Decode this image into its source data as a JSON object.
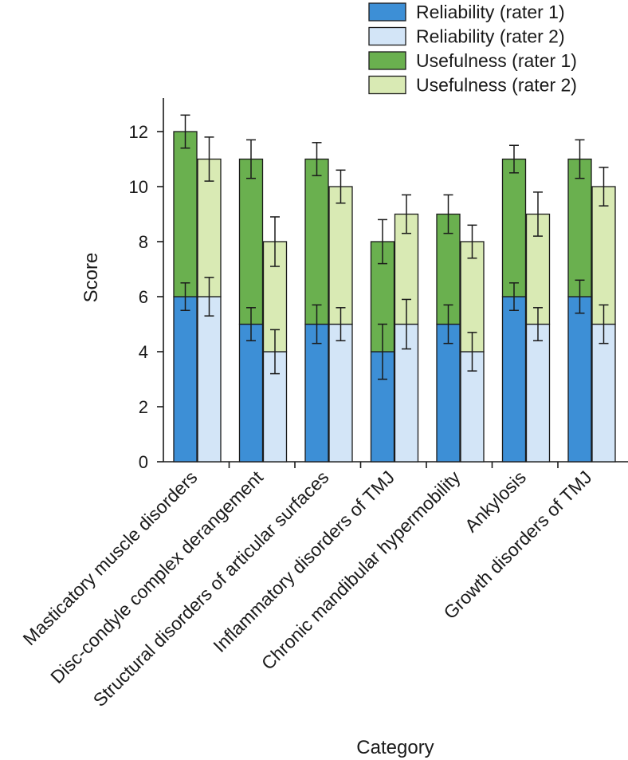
{
  "chart_data": {
    "type": "bar",
    "stacked": true,
    "grouped": true,
    "xlabel": "Category",
    "ylabel": "Score",
    "ylim": [
      0,
      13
    ],
    "yticks": [
      0,
      2,
      4,
      6,
      8,
      10,
      12
    ],
    "grid": false,
    "legend_position": "top-right",
    "categories": [
      "Masticatory muscle disorders",
      "Disc-condyle complex derangement",
      "Structural disorders of articular surfaces",
      "Inflammatory disorders of TMJ",
      "Chronic mandibular hypermobility",
      "Ankylosis",
      "Growth disorders of TMJ"
    ],
    "series": [
      {
        "name": "Reliability (rater 1)",
        "color": "#3d8fd6",
        "stack": "rater 1",
        "values": [
          6,
          5,
          5,
          4,
          5,
          6,
          6
        ],
        "errors": [
          0.5,
          0.6,
          0.7,
          1.0,
          0.7,
          0.5,
          0.6
        ]
      },
      {
        "name": "Reliability (rater 2)",
        "color": "#d3e5f7",
        "stack": "rater 2",
        "values": [
          6,
          4,
          5,
          5,
          4,
          5,
          5
        ],
        "errors": [
          0.7,
          0.8,
          0.6,
          0.9,
          0.7,
          0.6,
          0.7
        ]
      },
      {
        "name": "Usefulness (rater 1)",
        "color": "#6ab04f",
        "stack": "rater 1",
        "values": [
          6,
          6,
          6,
          4,
          4,
          5,
          5
        ],
        "errors": [
          0.6,
          0.7,
          0.6,
          0.8,
          0.7,
          0.5,
          0.7
        ]
      },
      {
        "name": "Usefulness (rater 2)",
        "color": "#d9eab4",
        "stack": "rater 2",
        "values": [
          5,
          4,
          5,
          4,
          4,
          4,
          5
        ],
        "errors": [
          0.8,
          0.9,
          0.6,
          0.7,
          0.6,
          0.8,
          0.7
        ]
      }
    ]
  }
}
